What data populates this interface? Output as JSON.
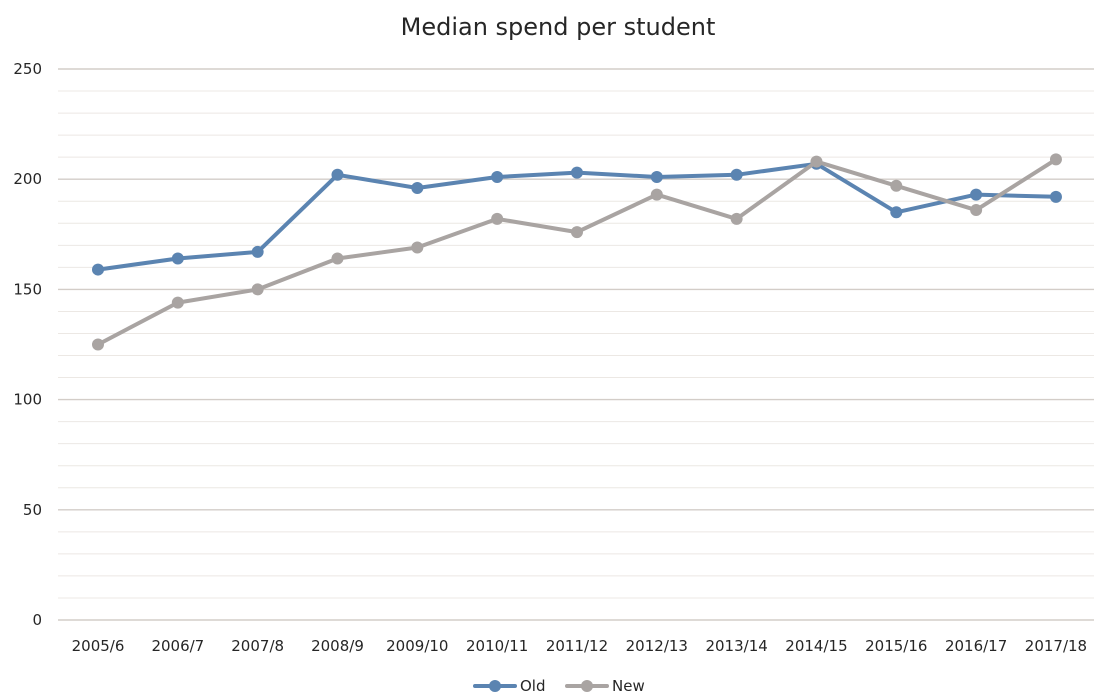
{
  "chart_data": {
    "type": "line",
    "title": "Median spend per student",
    "xlabel": "",
    "ylabel": "",
    "categories": [
      "2005/6",
      "2006/7",
      "2007/8",
      "2008/9",
      "2009/10",
      "2010/11",
      "2011/12",
      "2012/13",
      "2013/14",
      "2014/15",
      "2015/16",
      "2016/17",
      "2017/18"
    ],
    "series": [
      {
        "name": "Old",
        "color": "#5b84b1",
        "values": [
          159,
          164,
          167,
          202,
          196,
          201,
          203,
          201,
          202,
          207,
          185,
          193,
          192
        ]
      },
      {
        "name": "New",
        "color": "#a9a4a2",
        "values": [
          125,
          144,
          150,
          164,
          169,
          182,
          176,
          193,
          182,
          208,
          197,
          186,
          209
        ]
      }
    ],
    "ylim": [
      0,
      250
    ],
    "yticks": [
      0,
      50,
      100,
      150,
      200,
      250
    ],
    "minor_grid_step": 10,
    "grid": true,
    "legend_position": "bottom"
  }
}
